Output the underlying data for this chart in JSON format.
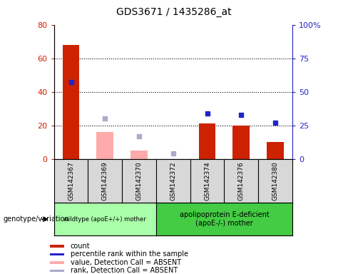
{
  "title": "GDS3671 / 1435286_at",
  "samples": [
    "GSM142367",
    "GSM142369",
    "GSM142370",
    "GSM142372",
    "GSM142374",
    "GSM142376",
    "GSM142380"
  ],
  "count_values": [
    68,
    null,
    null,
    null,
    21,
    20,
    10
  ],
  "count_absent_values": [
    null,
    16,
    5,
    null,
    null,
    null,
    null
  ],
  "rank_values": [
    57,
    null,
    null,
    null,
    34,
    33,
    27
  ],
  "rank_absent_values": [
    null,
    30,
    17,
    4,
    null,
    null,
    null
  ],
  "ylim_left": [
    0,
    80
  ],
  "ylim_right": [
    0,
    100
  ],
  "yticks_left": [
    0,
    20,
    40,
    60,
    80
  ],
  "yticks_right": [
    0,
    25,
    50,
    75,
    100
  ],
  "ytick_labels_right": [
    "0",
    "25",
    "50",
    "75",
    "100%"
  ],
  "grid_lines": [
    20,
    40,
    60
  ],
  "color_count": "#cc2200",
  "color_count_absent": "#ffaaaa",
  "color_rank": "#2222cc",
  "color_rank_absent": "#aaaacc",
  "bg_color": "#d8d8d8",
  "group1_label": "wildtype (apoE+/+) mother",
  "group2_label": "apolipoprotein E-deficient\n(apoE-/-) mother",
  "group1_indices": [
    0,
    1,
    2
  ],
  "group2_indices": [
    3,
    4,
    5,
    6
  ],
  "group1_color": "#aaffaa",
  "group2_color": "#44cc44",
  "genotype_label": "genotype/variation",
  "legend_items": [
    {
      "label": "count",
      "color": "#cc2200"
    },
    {
      "label": "percentile rank within the sample",
      "color": "#2222cc"
    },
    {
      "label": "value, Detection Call = ABSENT",
      "color": "#ffaaaa"
    },
    {
      "label": "rank, Detection Call = ABSENT",
      "color": "#aaaacc"
    }
  ]
}
